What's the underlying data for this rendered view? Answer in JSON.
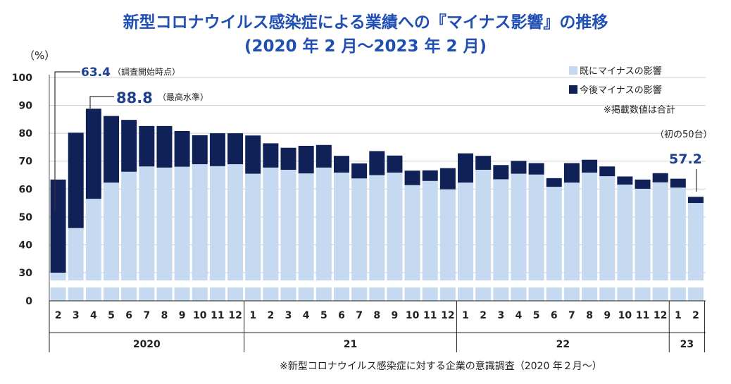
{
  "title_line1": "新型コロナウイルス感染症による業績への『マイナス影響』の推移",
  "title_line2": "(2020 年 2 月～2023 年 2 月)",
  "y_unit": "（%）",
  "legend": {
    "already": "既にマイナスの影響",
    "future": "今後マイナスの影響",
    "note": "※掲載数値は合計"
  },
  "annotations": {
    "start_value": "63.4",
    "start_note": "（調査開始時点）",
    "max_value": "88.8",
    "max_note": "（最高水準）",
    "last_note": "（初の50台）",
    "last_value": "57.2"
  },
  "source_note": "※新型コロナウイルス感染症に対する企業の意識調査（2020 年２月～）",
  "colors": {
    "already": "#c5d9f1",
    "future": "#0f2157",
    "title": "#1f4fb5",
    "accent": "#1f3f8f"
  },
  "chart_data": {
    "type": "bar",
    "stacked": true,
    "ylabel": "（%）",
    "yticks": [
      0,
      30,
      40,
      50,
      60,
      70,
      80,
      90,
      100
    ],
    "ylim": [
      30,
      100
    ],
    "axis_break": true,
    "categories": [
      "2",
      "3",
      "4",
      "5",
      "6",
      "7",
      "8",
      "9",
      "10",
      "11",
      "12",
      "1",
      "2",
      "3",
      "4",
      "5",
      "6",
      "7",
      "8",
      "9",
      "10",
      "11",
      "12",
      "1",
      "2",
      "3",
      "4",
      "5",
      "6",
      "7",
      "8",
      "9",
      "10",
      "11",
      "12",
      "1",
      "2"
    ],
    "years": [
      {
        "label": "2020",
        "count": 11
      },
      {
        "label": "21",
        "count": 12
      },
      {
        "label": "22",
        "count": 12
      },
      {
        "label": "23",
        "count": 2
      }
    ],
    "series": [
      {
        "name": "既にマイナスの影響",
        "values": [
          30.0,
          46.0,
          56.5,
          62.3,
          66.2,
          68.1,
          67.7,
          68.0,
          68.9,
          68.2,
          68.9,
          65.5,
          67.7,
          66.9,
          65.6,
          67.7,
          65.9,
          63.8,
          65.0,
          65.9,
          61.4,
          62.9,
          59.9,
          62.3,
          66.9,
          63.5,
          65.5,
          65.2,
          60.8,
          62.3,
          65.9,
          64.6,
          61.6,
          60.1,
          62.4,
          60.5,
          55.0
        ]
      },
      {
        "name": "今後マイナスの影響",
        "values": [
          33.4,
          34.2,
          32.3,
          23.9,
          18.6,
          14.5,
          14.9,
          12.8,
          10.4,
          11.8,
          11.1,
          13.7,
          8.7,
          7.9,
          9.9,
          8.1,
          6.0,
          5.4,
          8.6,
          6.1,
          5.2,
          3.8,
          7.6,
          10.5,
          5.0,
          5.1,
          4.6,
          4.1,
          3.1,
          7.0,
          4.6,
          3.5,
          2.9,
          3.3,
          3.3,
          3.2,
          2.2
        ]
      }
    ],
    "totals": [
      63.4,
      80.2,
      88.8,
      86.2,
      84.8,
      82.6,
      82.6,
      80.8,
      79.3,
      80.0,
      80.0,
      79.2,
      76.4,
      74.8,
      75.5,
      75.8,
      71.9,
      69.2,
      73.6,
      72.0,
      66.6,
      66.7,
      67.5,
      72.8,
      71.9,
      68.6,
      70.1,
      69.3,
      63.9,
      69.3,
      70.5,
      68.1,
      64.5,
      63.4,
      65.7,
      63.7,
      57.2
    ]
  }
}
